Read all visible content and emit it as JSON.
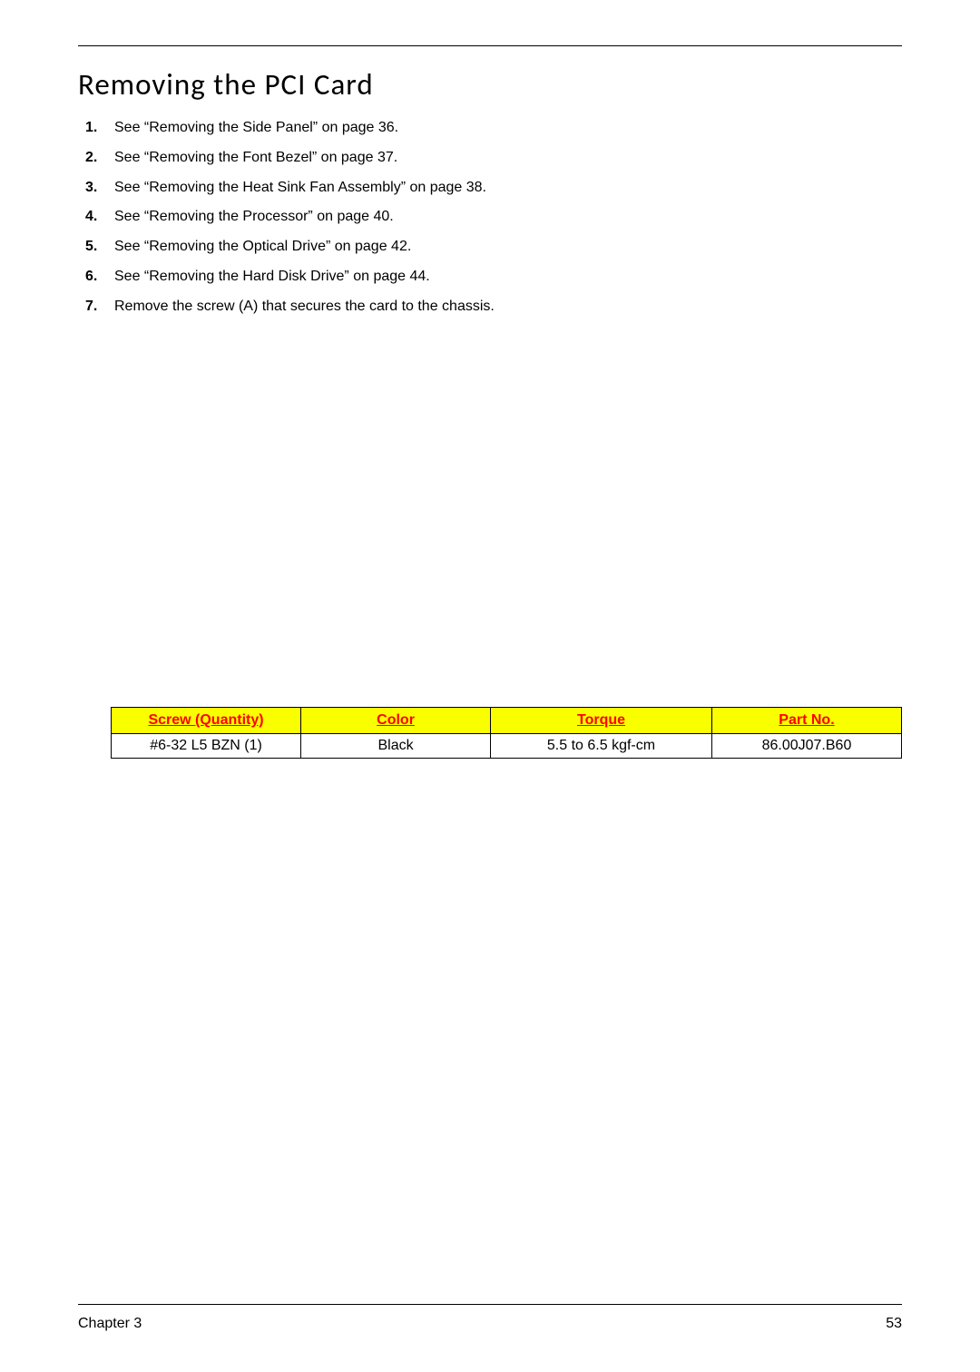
{
  "title": "Removing the PCI Card",
  "steps": [
    "See “Removing the Side Panel” on page 36.",
    "See “Removing the Font Bezel” on page 37.",
    "See “Removing the Heat Sink Fan Assembly” on page 38.",
    "See “Removing the Processor” on page 40.",
    "See “Removing the Optical Drive” on page 42.",
    "See “Removing the Hard Disk Drive” on page 44.",
    "Remove the screw (A) that secures the card to the chassis."
  ],
  "table": {
    "columns": [
      "Screw (Quantity)",
      "Color",
      "Torque",
      "Part No."
    ],
    "rows": [
      [
        "#6-32 L5 BZN (1)",
        "Black",
        "5.5 to 6.5 kgf-cm",
        "86.00J07.B60"
      ]
    ],
    "header_bg": "#faff00",
    "header_color": "#ff0000",
    "border_color": "#000000",
    "col_widths": [
      "24%",
      "24%",
      "28%",
      "24%"
    ]
  },
  "footer": {
    "chapter": "Chapter 3",
    "page": "53"
  }
}
